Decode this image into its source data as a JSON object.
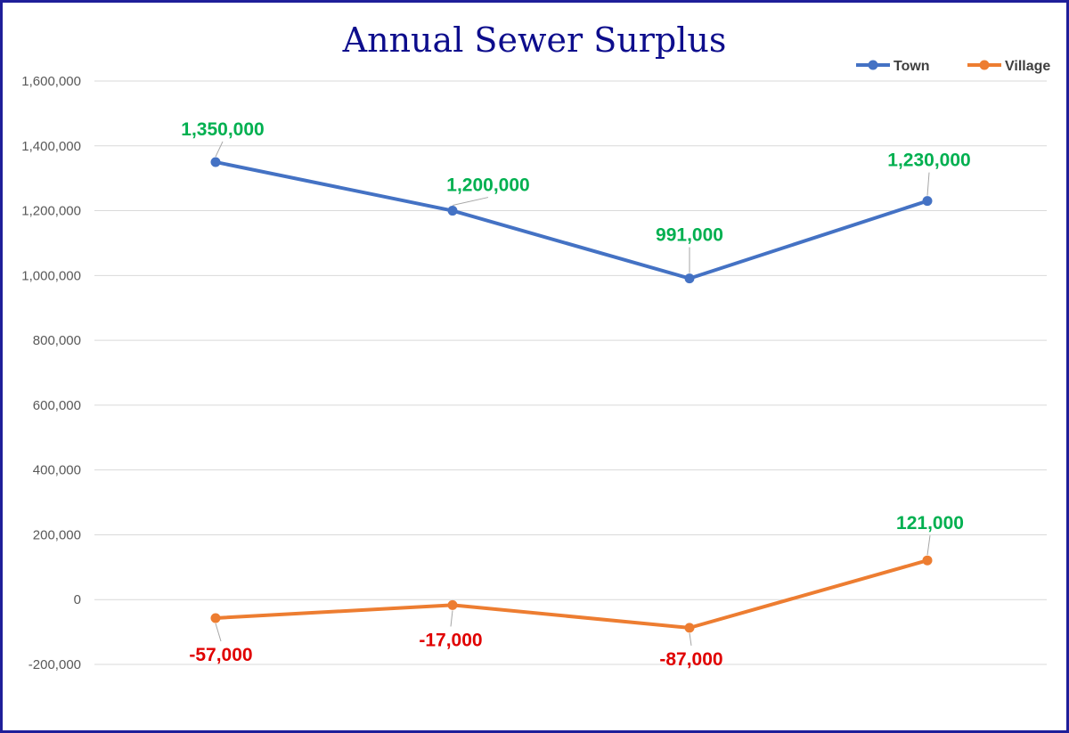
{
  "chart_data": {
    "type": "line",
    "title": "Annual Sewer Surplus",
    "xlabel": "",
    "ylabel": "",
    "categories": [
      "",
      "",
      "",
      ""
    ],
    "ylim": [
      -200000,
      1600000
    ],
    "yticks": [
      -200000,
      0,
      200000,
      400000,
      600000,
      800000,
      1000000,
      1200000,
      1400000,
      1600000
    ],
    "ytick_labels": [
      "-200,000",
      "0",
      "200,000",
      "400,000",
      "600,000",
      "800,000",
      "1,000,000",
      "1,200,000",
      "1,400,000",
      "1,600,000"
    ],
    "grid": true,
    "legend_position": "top-right",
    "series": [
      {
        "name": "Town",
        "color": "#4472c4",
        "values": [
          1350000,
          1200000,
          991000,
          1230000
        ],
        "labels": [
          "1,350,000",
          "1,200,000",
          "991,000",
          "1,230,000"
        ],
        "label_colors": [
          "#00b050",
          "#00b050",
          "#00b050",
          "#00b050"
        ]
      },
      {
        "name": "Village",
        "color": "#ed7d31",
        "values": [
          -57000,
          -17000,
          -87000,
          121000
        ],
        "labels": [
          "-57,000",
          "-17,000",
          "-87,000",
          "121,000"
        ],
        "label_colors": [
          "#e00000",
          "#e00000",
          "#e00000",
          "#00b050"
        ]
      }
    ]
  }
}
